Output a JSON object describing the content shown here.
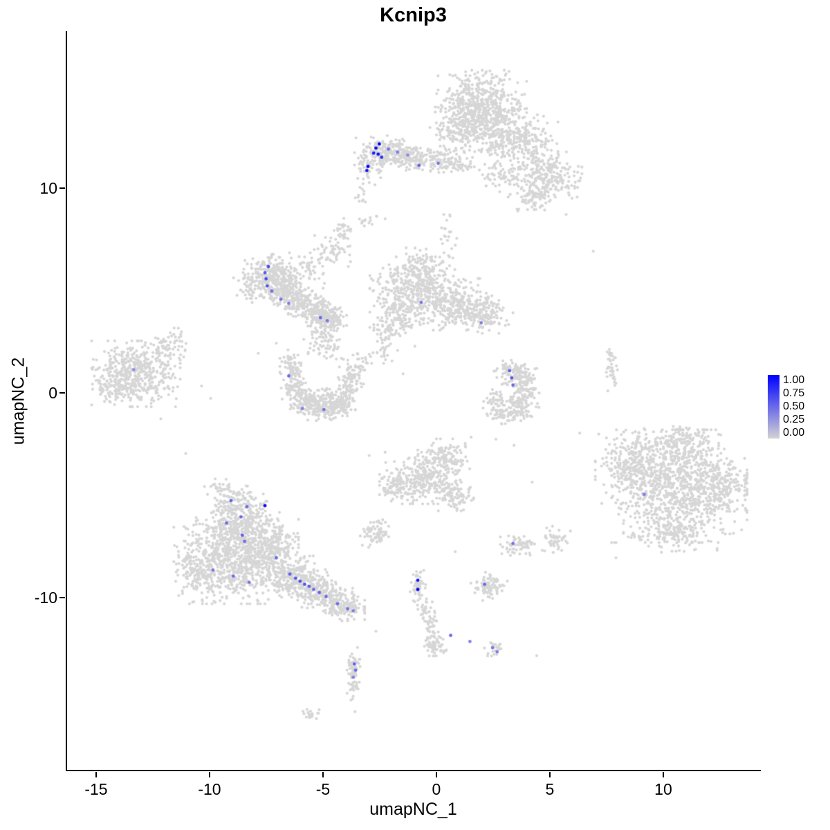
{
  "title": "Kcnip3",
  "axes": {
    "x": {
      "label": "umapNC_1",
      "ticks": [
        "-15",
        "-10",
        "-5",
        "0",
        "5",
        "10"
      ],
      "tick_values": [
        -15,
        -10,
        -5,
        0,
        5,
        10
      ],
      "range": [
        -16.34,
        14.3
      ]
    },
    "y": {
      "label": "umapNC_2",
      "ticks": [
        "10",
        "0",
        "-10"
      ],
      "tick_values": [
        10,
        0,
        -10
      ],
      "range": [
        -18.48,
        17.67
      ]
    }
  },
  "legend": {
    "labels": [
      "1.00",
      "0.75",
      "0.50",
      "0.25",
      "0.00"
    ],
    "high_color": "#0000FF",
    "low_color": "#D3D3D3"
  },
  "chart_data": {
    "type": "scatter",
    "title": "Kcnip3",
    "xlabel": "umapNC_1",
    "ylabel": "umapNC_2",
    "xlim": [
      -16.34,
      14.3
    ],
    "ylim": [
      -18.48,
      17.67
    ],
    "grid": false,
    "legend_position": "right",
    "legend_scale": [
      0,
      0.25,
      0.5,
      0.75,
      1.0
    ],
    "point_color_low": "#D6D6D6",
    "point_color_high": "#0000FF",
    "cluster_format": [
      "center_x",
      "center_y",
      "sd_x",
      "sd_y",
      "n_points"
    ],
    "clusters": [
      [
        2.0,
        13.8,
        0.85,
        0.85,
        550
      ],
      [
        3.5,
        12.3,
        0.8,
        0.6,
        260
      ],
      [
        4.9,
        10.6,
        0.65,
        0.55,
        240
      ],
      [
        4.3,
        9.5,
        0.4,
        0.35,
        70
      ],
      [
        0.8,
        12.7,
        0.5,
        0.55,
        90
      ],
      [
        2.9,
        10.5,
        0.45,
        0.45,
        60
      ],
      [
        1.3,
        13.9,
        0.6,
        0.7,
        150
      ],
      [
        -3.0,
        11.3,
        0.28,
        0.5,
        80
      ],
      [
        -2.4,
        11.8,
        0.33,
        0.33,
        90
      ],
      [
        -1.8,
        11.7,
        0.38,
        0.3,
        80
      ],
      [
        -1.1,
        11.5,
        0.4,
        0.28,
        70
      ],
      [
        -0.4,
        11.4,
        0.4,
        0.28,
        60
      ],
      [
        0.3,
        11.3,
        0.33,
        0.28,
        45
      ],
      [
        1.0,
        11.15,
        0.28,
        0.25,
        35
      ],
      [
        -2.9,
        8.4,
        0.3,
        0.12,
        14
      ],
      [
        -3.35,
        9.6,
        0.12,
        0.4,
        12
      ],
      [
        0.5,
        7.3,
        0.18,
        0.6,
        22
      ],
      [
        -7.3,
        5.6,
        0.55,
        0.5,
        300
      ],
      [
        -6.6,
        4.9,
        0.4,
        0.35,
        120
      ],
      [
        -6.0,
        4.4,
        0.45,
        0.3,
        120
      ],
      [
        -5.2,
        3.9,
        0.4,
        0.3,
        110
      ],
      [
        -4.8,
        3.5,
        0.35,
        0.28,
        130
      ],
      [
        -8.3,
        5.2,
        0.3,
        0.35,
        40
      ],
      [
        -5.6,
        6.2,
        0.4,
        0.4,
        50
      ],
      [
        -4.6,
        6.9,
        0.35,
        0.45,
        50
      ],
      [
        -4.2,
        7.7,
        0.22,
        0.35,
        30
      ],
      [
        -0.9,
        4.9,
        0.9,
        0.75,
        450
      ],
      [
        0.9,
        4.3,
        0.65,
        0.55,
        240
      ],
      [
        2.2,
        3.8,
        0.5,
        0.4,
        110
      ],
      [
        -0.6,
        6.3,
        0.5,
        0.35,
        70
      ],
      [
        -1.9,
        3.4,
        0.4,
        0.5,
        90
      ],
      [
        -2.3,
        2.2,
        0.25,
        0.55,
        35
      ],
      [
        -3.2,
        1.6,
        0.25,
        0.3,
        18
      ],
      [
        -13.3,
        0.9,
        0.85,
        0.7,
        450
      ],
      [
        -12.0,
        2.1,
        0.4,
        0.35,
        60
      ],
      [
        -14.3,
        0.2,
        0.4,
        0.4,
        60
      ],
      [
        -11.3,
        2.8,
        0.2,
        0.2,
        12
      ],
      [
        -6.4,
        1.0,
        0.25,
        0.4,
        55
      ],
      [
        -6.2,
        0.1,
        0.3,
        0.4,
        75
      ],
      [
        -5.7,
        -0.55,
        0.35,
        0.3,
        90
      ],
      [
        -5.0,
        -0.8,
        0.45,
        0.28,
        110
      ],
      [
        -4.3,
        -0.55,
        0.3,
        0.3,
        80
      ],
      [
        -3.9,
        0.2,
        0.25,
        0.45,
        60
      ],
      [
        -3.7,
        1.0,
        0.22,
        0.4,
        50
      ],
      [
        -5.0,
        -0.3,
        0.5,
        0.25,
        60
      ],
      [
        -6.5,
        1.6,
        0.2,
        0.25,
        22
      ],
      [
        -5.2,
        2.6,
        0.35,
        0.5,
        40
      ],
      [
        -4.5,
        2.1,
        0.3,
        0.4,
        28
      ],
      [
        3.2,
        1.1,
        0.3,
        0.25,
        50
      ],
      [
        3.6,
        0.75,
        0.35,
        0.3,
        70
      ],
      [
        3.9,
        0.1,
        0.3,
        0.4,
        80
      ],
      [
        3.7,
        -0.7,
        0.35,
        0.3,
        80
      ],
      [
        3.0,
        -1.0,
        0.35,
        0.25,
        60
      ],
      [
        2.6,
        -0.4,
        0.25,
        0.35,
        40
      ],
      [
        10.7,
        -4.6,
        1.3,
        1.2,
        1000
      ],
      [
        8.6,
        -3.6,
        0.7,
        0.8,
        250
      ],
      [
        10.6,
        -2.5,
        0.8,
        0.45,
        140
      ],
      [
        10.3,
        -6.8,
        0.9,
        0.45,
        140
      ],
      [
        12.6,
        -4.4,
        0.45,
        0.7,
        110
      ],
      [
        7.7,
        1.3,
        0.12,
        0.55,
        35
      ],
      [
        -8.7,
        -5.5,
        0.55,
        0.4,
        130
      ],
      [
        -8.8,
        -6.6,
        0.8,
        0.55,
        300
      ],
      [
        -9.1,
        -8.4,
        1.1,
        0.85,
        700
      ],
      [
        -7.5,
        -7.6,
        0.6,
        0.6,
        250
      ],
      [
        -6.4,
        -9.0,
        0.5,
        0.45,
        200
      ],
      [
        -5.5,
        -9.6,
        0.45,
        0.4,
        160
      ],
      [
        -4.7,
        -10.1,
        0.45,
        0.35,
        130
      ],
      [
        -4.0,
        -10.5,
        0.35,
        0.3,
        90
      ],
      [
        -10.6,
        -8.8,
        0.4,
        0.5,
        80
      ],
      [
        -9.6,
        -4.7,
        0.3,
        0.25,
        25
      ],
      [
        -0.7,
        -4.2,
        0.8,
        0.55,
        300
      ],
      [
        0.3,
        -3.2,
        0.5,
        0.4,
        120
      ],
      [
        0.9,
        -5.0,
        0.4,
        0.35,
        90
      ],
      [
        -1.8,
        -4.6,
        0.3,
        0.35,
        60
      ],
      [
        -2.7,
        -6.9,
        0.3,
        0.3,
        70
      ],
      [
        3.6,
        -7.5,
        0.35,
        0.25,
        60
      ],
      [
        5.2,
        -7.2,
        0.3,
        0.28,
        45
      ],
      [
        -0.85,
        -9.5,
        0.15,
        0.4,
        50
      ],
      [
        -0.5,
        -10.6,
        0.15,
        0.3,
        28
      ],
      [
        -0.3,
        -11.3,
        0.12,
        0.35,
        28
      ],
      [
        -0.15,
        -12.1,
        0.18,
        0.35,
        38
      ],
      [
        0.05,
        -12.5,
        0.25,
        0.18,
        25
      ],
      [
        2.3,
        -9.5,
        0.35,
        0.3,
        80
      ],
      [
        2.55,
        -12.6,
        0.22,
        0.16,
        22
      ],
      [
        -3.7,
        -14.1,
        0.12,
        0.7,
        60
      ],
      [
        -3.65,
        -13.4,
        0.15,
        0.25,
        25
      ],
      [
        -5.6,
        -15.7,
        0.3,
        0.12,
        18
      ]
    ],
    "sparse_points": [
      [
        -10.4,
        0.3
      ],
      [
        -10.0,
        -0.3
      ],
      [
        -11.1,
        -3.0
      ],
      [
        -7.9,
        1.9
      ],
      [
        -7.1,
        2.4
      ],
      [
        0.3,
        8.7
      ],
      [
        6.9,
        6.9
      ],
      [
        2.6,
        -2.3
      ],
      [
        1.5,
        -2.2
      ],
      [
        3.4,
        -2.6
      ],
      [
        -3.0,
        -3.1
      ],
      [
        -2.7,
        -11.7
      ],
      [
        4.4,
        -12.9
      ],
      [
        7.9,
        -8.1
      ],
      [
        -12.2,
        -1.3
      ],
      [
        5.0,
        9.4
      ],
      [
        5.7,
        8.7
      ],
      [
        -1.5,
        0.9
      ],
      [
        0.8,
        -7.8
      ],
      [
        -11.6,
        -7.5
      ],
      [
        4.2,
        -4.4
      ],
      [
        6.3,
        -2.0
      ]
    ],
    "expressing_point_format": [
      "x",
      "y",
      "expression_0_to_1"
    ],
    "expressing_points": [
      [
        -2.55,
        12.15,
        1.0
      ],
      [
        -2.7,
        11.95,
        0.95
      ],
      [
        -2.8,
        11.7,
        0.85
      ],
      [
        -2.6,
        11.65,
        0.9
      ],
      [
        -2.45,
        11.5,
        0.8
      ],
      [
        -3.05,
        11.05,
        1.0
      ],
      [
        -3.1,
        10.85,
        0.9
      ],
      [
        -2.15,
        11.9,
        0.45
      ],
      [
        -1.75,
        11.75,
        0.4
      ],
      [
        -1.3,
        11.6,
        0.35
      ],
      [
        -0.8,
        11.1,
        0.55
      ],
      [
        0.05,
        11.2,
        0.45
      ],
      [
        -7.45,
        6.15,
        0.7
      ],
      [
        -7.6,
        5.85,
        0.6
      ],
      [
        -7.55,
        5.55,
        0.65
      ],
      [
        -7.5,
        5.2,
        0.6
      ],
      [
        -7.3,
        4.95,
        0.5
      ],
      [
        -6.9,
        4.55,
        0.45
      ],
      [
        -6.55,
        4.35,
        0.4
      ],
      [
        -5.15,
        3.65,
        0.5
      ],
      [
        -4.85,
        3.5,
        0.45
      ],
      [
        -0.7,
        4.4,
        0.45
      ],
      [
        1.95,
        3.4,
        0.4
      ],
      [
        -13.4,
        1.1,
        0.35
      ],
      [
        -6.55,
        0.8,
        0.5
      ],
      [
        -5.95,
        -0.8,
        0.4
      ],
      [
        -5.0,
        -0.85,
        0.45
      ],
      [
        3.2,
        1.05,
        0.55
      ],
      [
        3.3,
        0.7,
        0.6
      ],
      [
        3.35,
        0.35,
        0.5
      ],
      [
        9.15,
        -5.0,
        0.4
      ],
      [
        -9.1,
        -5.3,
        0.55
      ],
      [
        -8.4,
        -5.6,
        0.5
      ],
      [
        -7.6,
        -5.55,
        0.95
      ],
      [
        -9.3,
        -6.4,
        0.5
      ],
      [
        -8.66,
        -6.1,
        0.5
      ],
      [
        -8.6,
        -7.0,
        0.55
      ],
      [
        -8.5,
        -7.3,
        0.5
      ],
      [
        -7.1,
        -8.1,
        0.5
      ],
      [
        -9.9,
        -8.7,
        0.45
      ],
      [
        -9.0,
        -9.0,
        0.5
      ],
      [
        -8.3,
        -9.3,
        0.45
      ],
      [
        -6.5,
        -8.9,
        0.55
      ],
      [
        -6.25,
        -9.1,
        0.6
      ],
      [
        -6.05,
        -9.25,
        0.65
      ],
      [
        -5.85,
        -9.4,
        0.6
      ],
      [
        -5.65,
        -9.5,
        0.55
      ],
      [
        -5.45,
        -9.65,
        0.5
      ],
      [
        -5.2,
        -9.8,
        0.55
      ],
      [
        -4.9,
        -10.0,
        0.5
      ],
      [
        -4.4,
        -10.35,
        0.5
      ],
      [
        -3.95,
        -10.6,
        0.45
      ],
      [
        -3.7,
        -10.7,
        0.4
      ],
      [
        -0.85,
        -9.2,
        0.9
      ],
      [
        -0.85,
        -9.65,
        1.0
      ],
      [
        0.6,
        -11.9,
        0.5
      ],
      [
        1.45,
        -12.2,
        0.4
      ],
      [
        2.1,
        -9.4,
        0.5
      ],
      [
        2.45,
        -12.5,
        0.45
      ],
      [
        2.65,
        -12.7,
        0.4
      ],
      [
        -3.65,
        -13.3,
        0.55
      ],
      [
        -3.6,
        -13.6,
        0.5
      ],
      [
        -3.7,
        -13.95,
        0.4
      ],
      [
        3.35,
        -7.4,
        0.45
      ]
    ]
  }
}
